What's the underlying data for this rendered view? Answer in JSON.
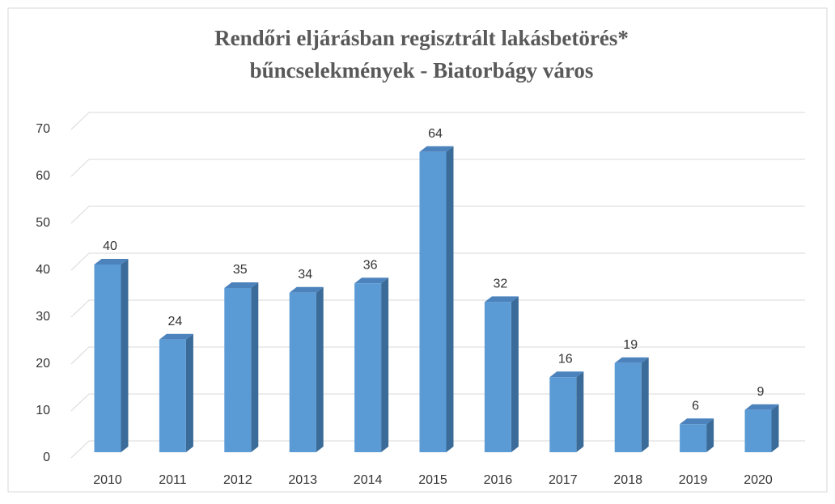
{
  "chart_data": {
    "type": "bar3d",
    "title": [
      "Rendőri eljárásban regisztrált lakásbetörés*",
      "bűncselekmények - Biatorbágy város"
    ],
    "categories": [
      "2010",
      "2011",
      "2012",
      "2013",
      "2014",
      "2015",
      "2016",
      "2017",
      "2018",
      "2019",
      "2020"
    ],
    "values": [
      40,
      24,
      35,
      34,
      36,
      64,
      32,
      16,
      19,
      6,
      9
    ],
    "color": "#5b9bd5",
    "ylim": [
      0,
      70
    ],
    "yticks": [
      0,
      10,
      20,
      30,
      40,
      50,
      60,
      70
    ],
    "grid": true
  }
}
